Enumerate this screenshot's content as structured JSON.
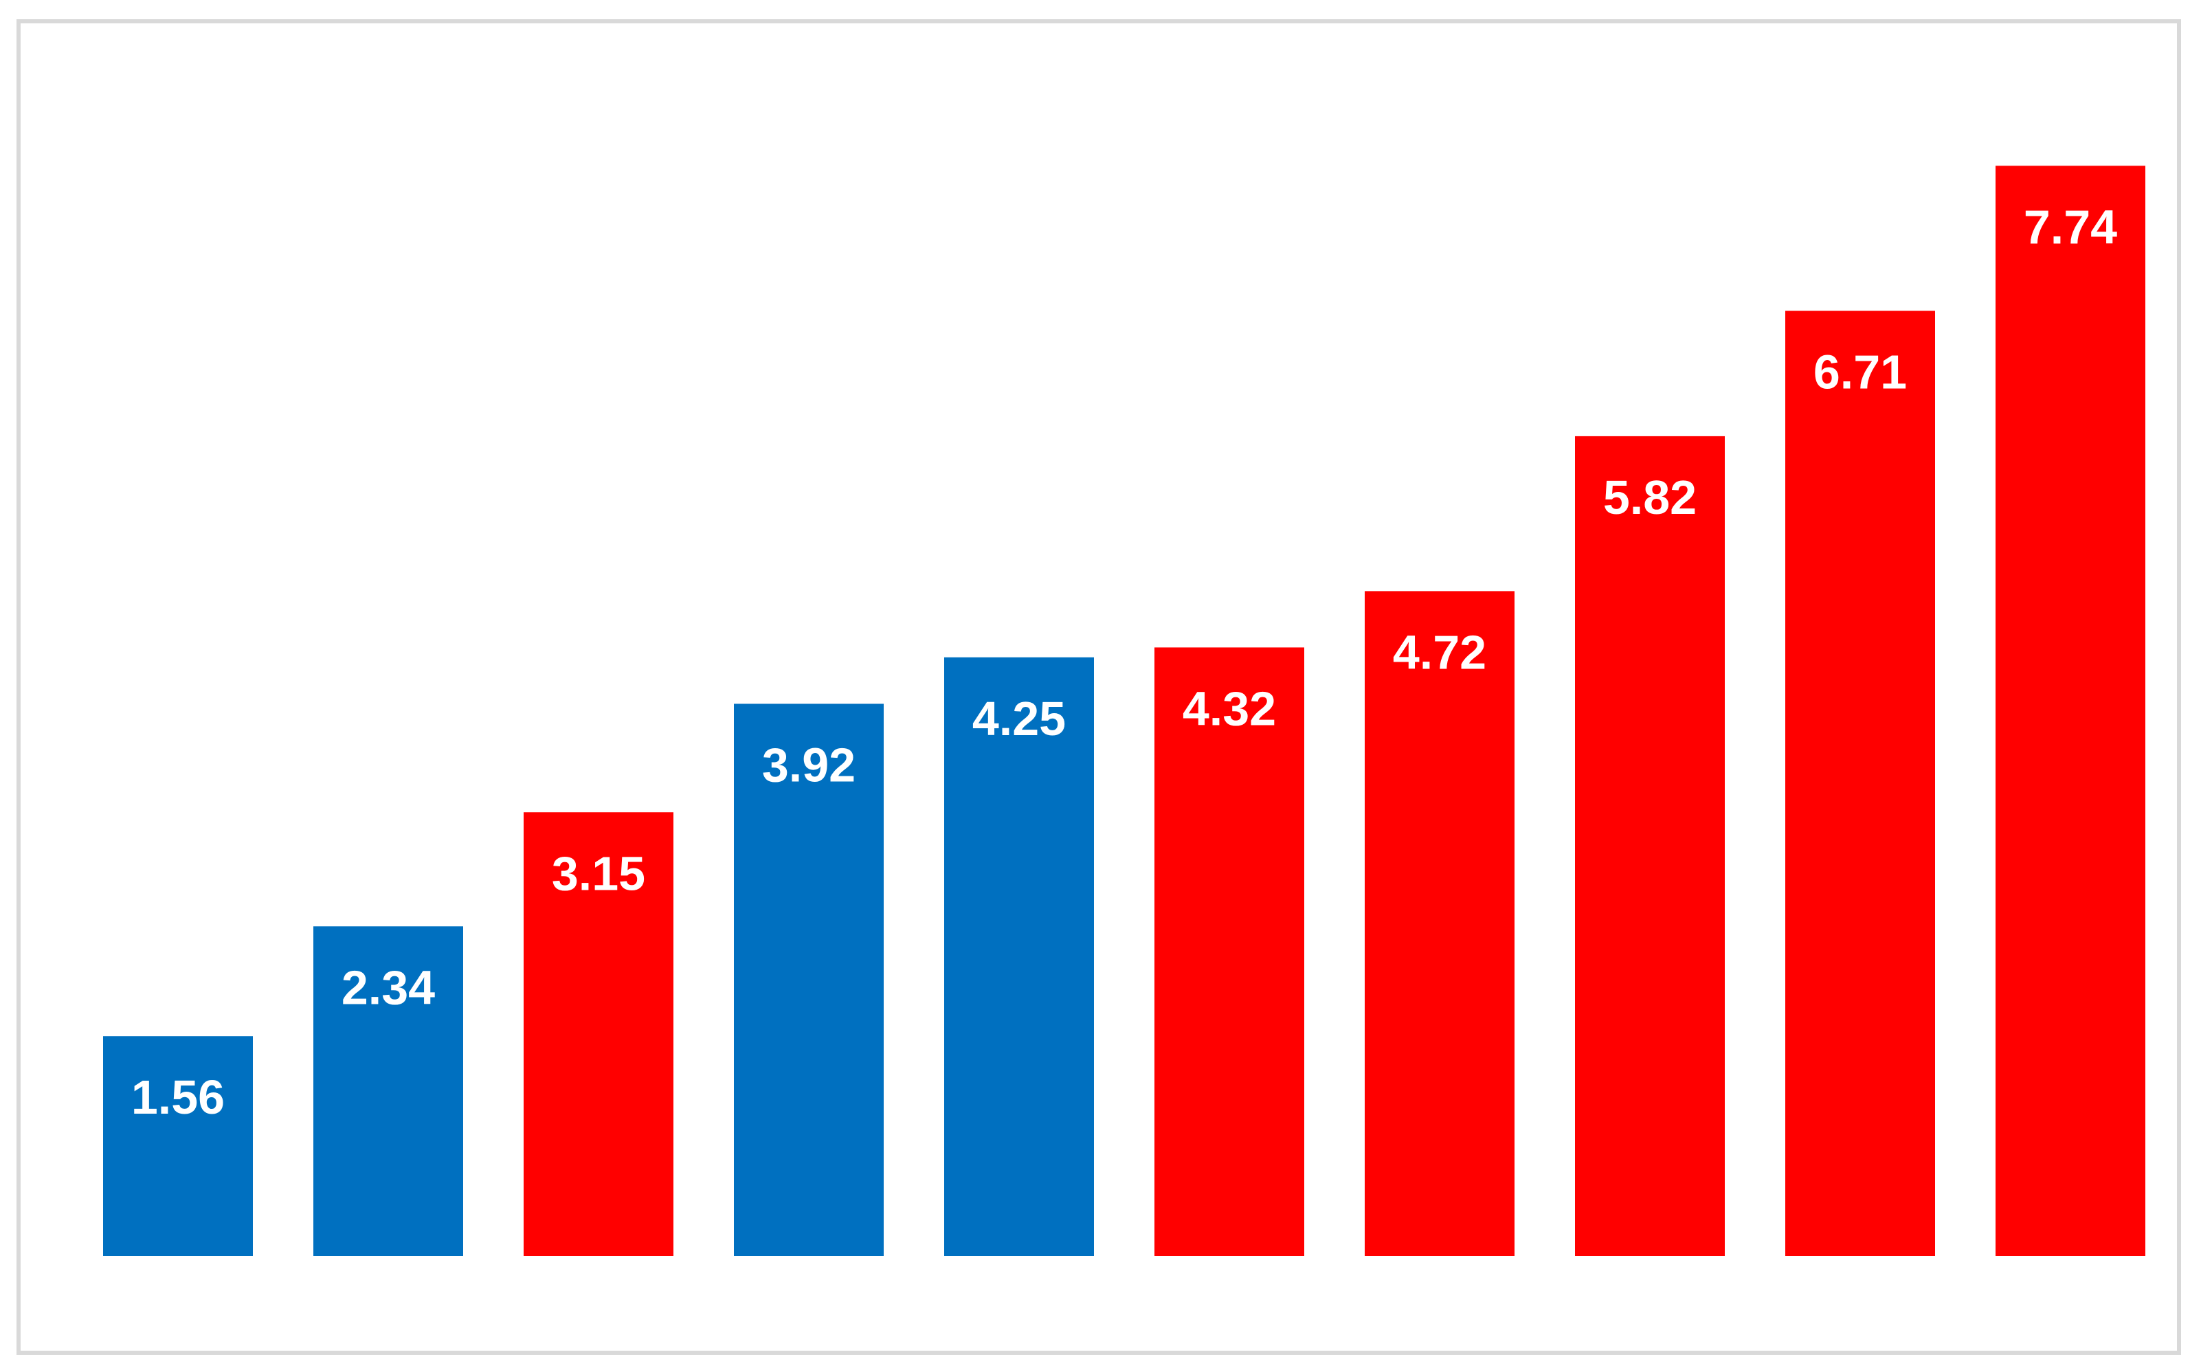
{
  "chart_data": {
    "type": "bar",
    "title": "",
    "xlabel": "",
    "ylabel": "",
    "ylim": [
      0,
      8
    ],
    "grid": false,
    "legend": "none",
    "categories": [
      "",
      "",
      "",
      "",
      "",
      "",
      "",
      "",
      "",
      ""
    ],
    "values": [
      1.56,
      2.34,
      3.15,
      3.92,
      4.25,
      4.32,
      4.72,
      5.82,
      6.71,
      7.74
    ],
    "value_labels": [
      "1.56",
      "2.34",
      "3.15",
      "3.92",
      "4.25",
      "4.32",
      "4.72",
      "5.82",
      "6.71",
      "7.74"
    ],
    "bar_colors": [
      "#0070c0",
      "#0070c0",
      "#ff0000",
      "#0070c0",
      "#0070c0",
      "#ff0000",
      "#ff0000",
      "#ff0000",
      "#ff0000",
      "#ff0000"
    ],
    "label_color": "#ffffff",
    "frame_color": "#d9d9d9"
  }
}
